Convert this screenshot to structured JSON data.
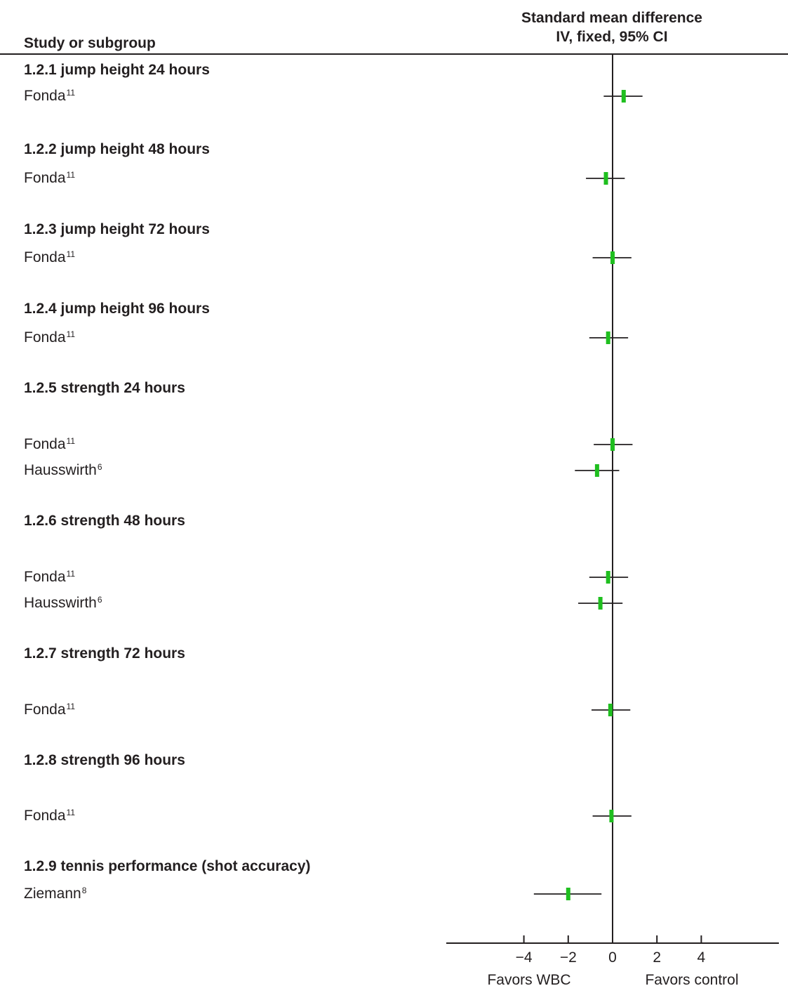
{
  "headers": {
    "study": "Study or subgroup",
    "smd_line1": "Standard mean difference",
    "smd_line2": "IV, fixed, 95% CI"
  },
  "chart_data": {
    "type": "forest",
    "xlabel_left": "Favors WBC",
    "xlabel_right": "Favors control",
    "x_ticks": [
      "−4",
      "−2",
      "0",
      "2",
      "4"
    ],
    "x_tick_values": [
      -4,
      -2,
      0,
      2,
      4
    ],
    "xlim": [
      -7.5,
      7.5
    ],
    "colors": {
      "marker": "#1fbf1f",
      "line": "#231f20"
    },
    "subgroups": [
      {
        "title": "1.2.1 jump height 24 hours",
        "studies": [
          {
            "name": "Fonda",
            "ref": "11",
            "smd": 0.5,
            "ci": [
              -0.4,
              1.35
            ]
          }
        ]
      },
      {
        "title": "1.2.2 jump height 48 hours",
        "studies": [
          {
            "name": "Fonda",
            "ref": "11",
            "smd": -0.3,
            "ci": [
              -1.2,
              0.55
            ]
          }
        ]
      },
      {
        "title": "1.2.3 jump height 72 hours",
        "studies": [
          {
            "name": "Fonda",
            "ref": "11",
            "smd": 0.0,
            "ci": [
              -0.9,
              0.85
            ]
          }
        ]
      },
      {
        "title": "1.2.4 jump height 96 hours",
        "studies": [
          {
            "name": "Fonda",
            "ref": "11",
            "smd": -0.2,
            "ci": [
              -1.05,
              0.7
            ]
          }
        ]
      },
      {
        "title": "1.2.5 strength 24 hours",
        "studies": [
          {
            "name": "Fonda",
            "ref": "11",
            "smd": 0.0,
            "ci": [
              -0.85,
              0.9
            ]
          },
          {
            "name": "Hausswirth",
            "ref": "6",
            "smd": -0.7,
            "ci": [
              -1.7,
              0.3
            ]
          }
        ]
      },
      {
        "title": "1.2.6 strength 48 hours",
        "studies": [
          {
            "name": "Fonda",
            "ref": "11",
            "smd": -0.2,
            "ci": [
              -1.05,
              0.7
            ]
          },
          {
            "name": "Hausswirth",
            "ref": "6",
            "smd": -0.55,
            "ci": [
              -1.55,
              0.45
            ]
          }
        ]
      },
      {
        "title": "1.2.7 strength 72 hours",
        "studies": [
          {
            "name": "Fonda",
            "ref": "11",
            "smd": -0.1,
            "ci": [
              -0.95,
              0.8
            ]
          }
        ]
      },
      {
        "title": "1.2.8 strength 96 hours",
        "studies": [
          {
            "name": "Fonda",
            "ref": "11",
            "smd": -0.05,
            "ci": [
              -0.9,
              0.85
            ]
          }
        ]
      },
      {
        "title": "1.2.9 tennis performance (shot accuracy)",
        "studies": [
          {
            "name": "Ziemann",
            "ref": "8",
            "smd": -2.0,
            "ci": [
              -3.55,
              -0.5
            ]
          }
        ]
      }
    ]
  }
}
